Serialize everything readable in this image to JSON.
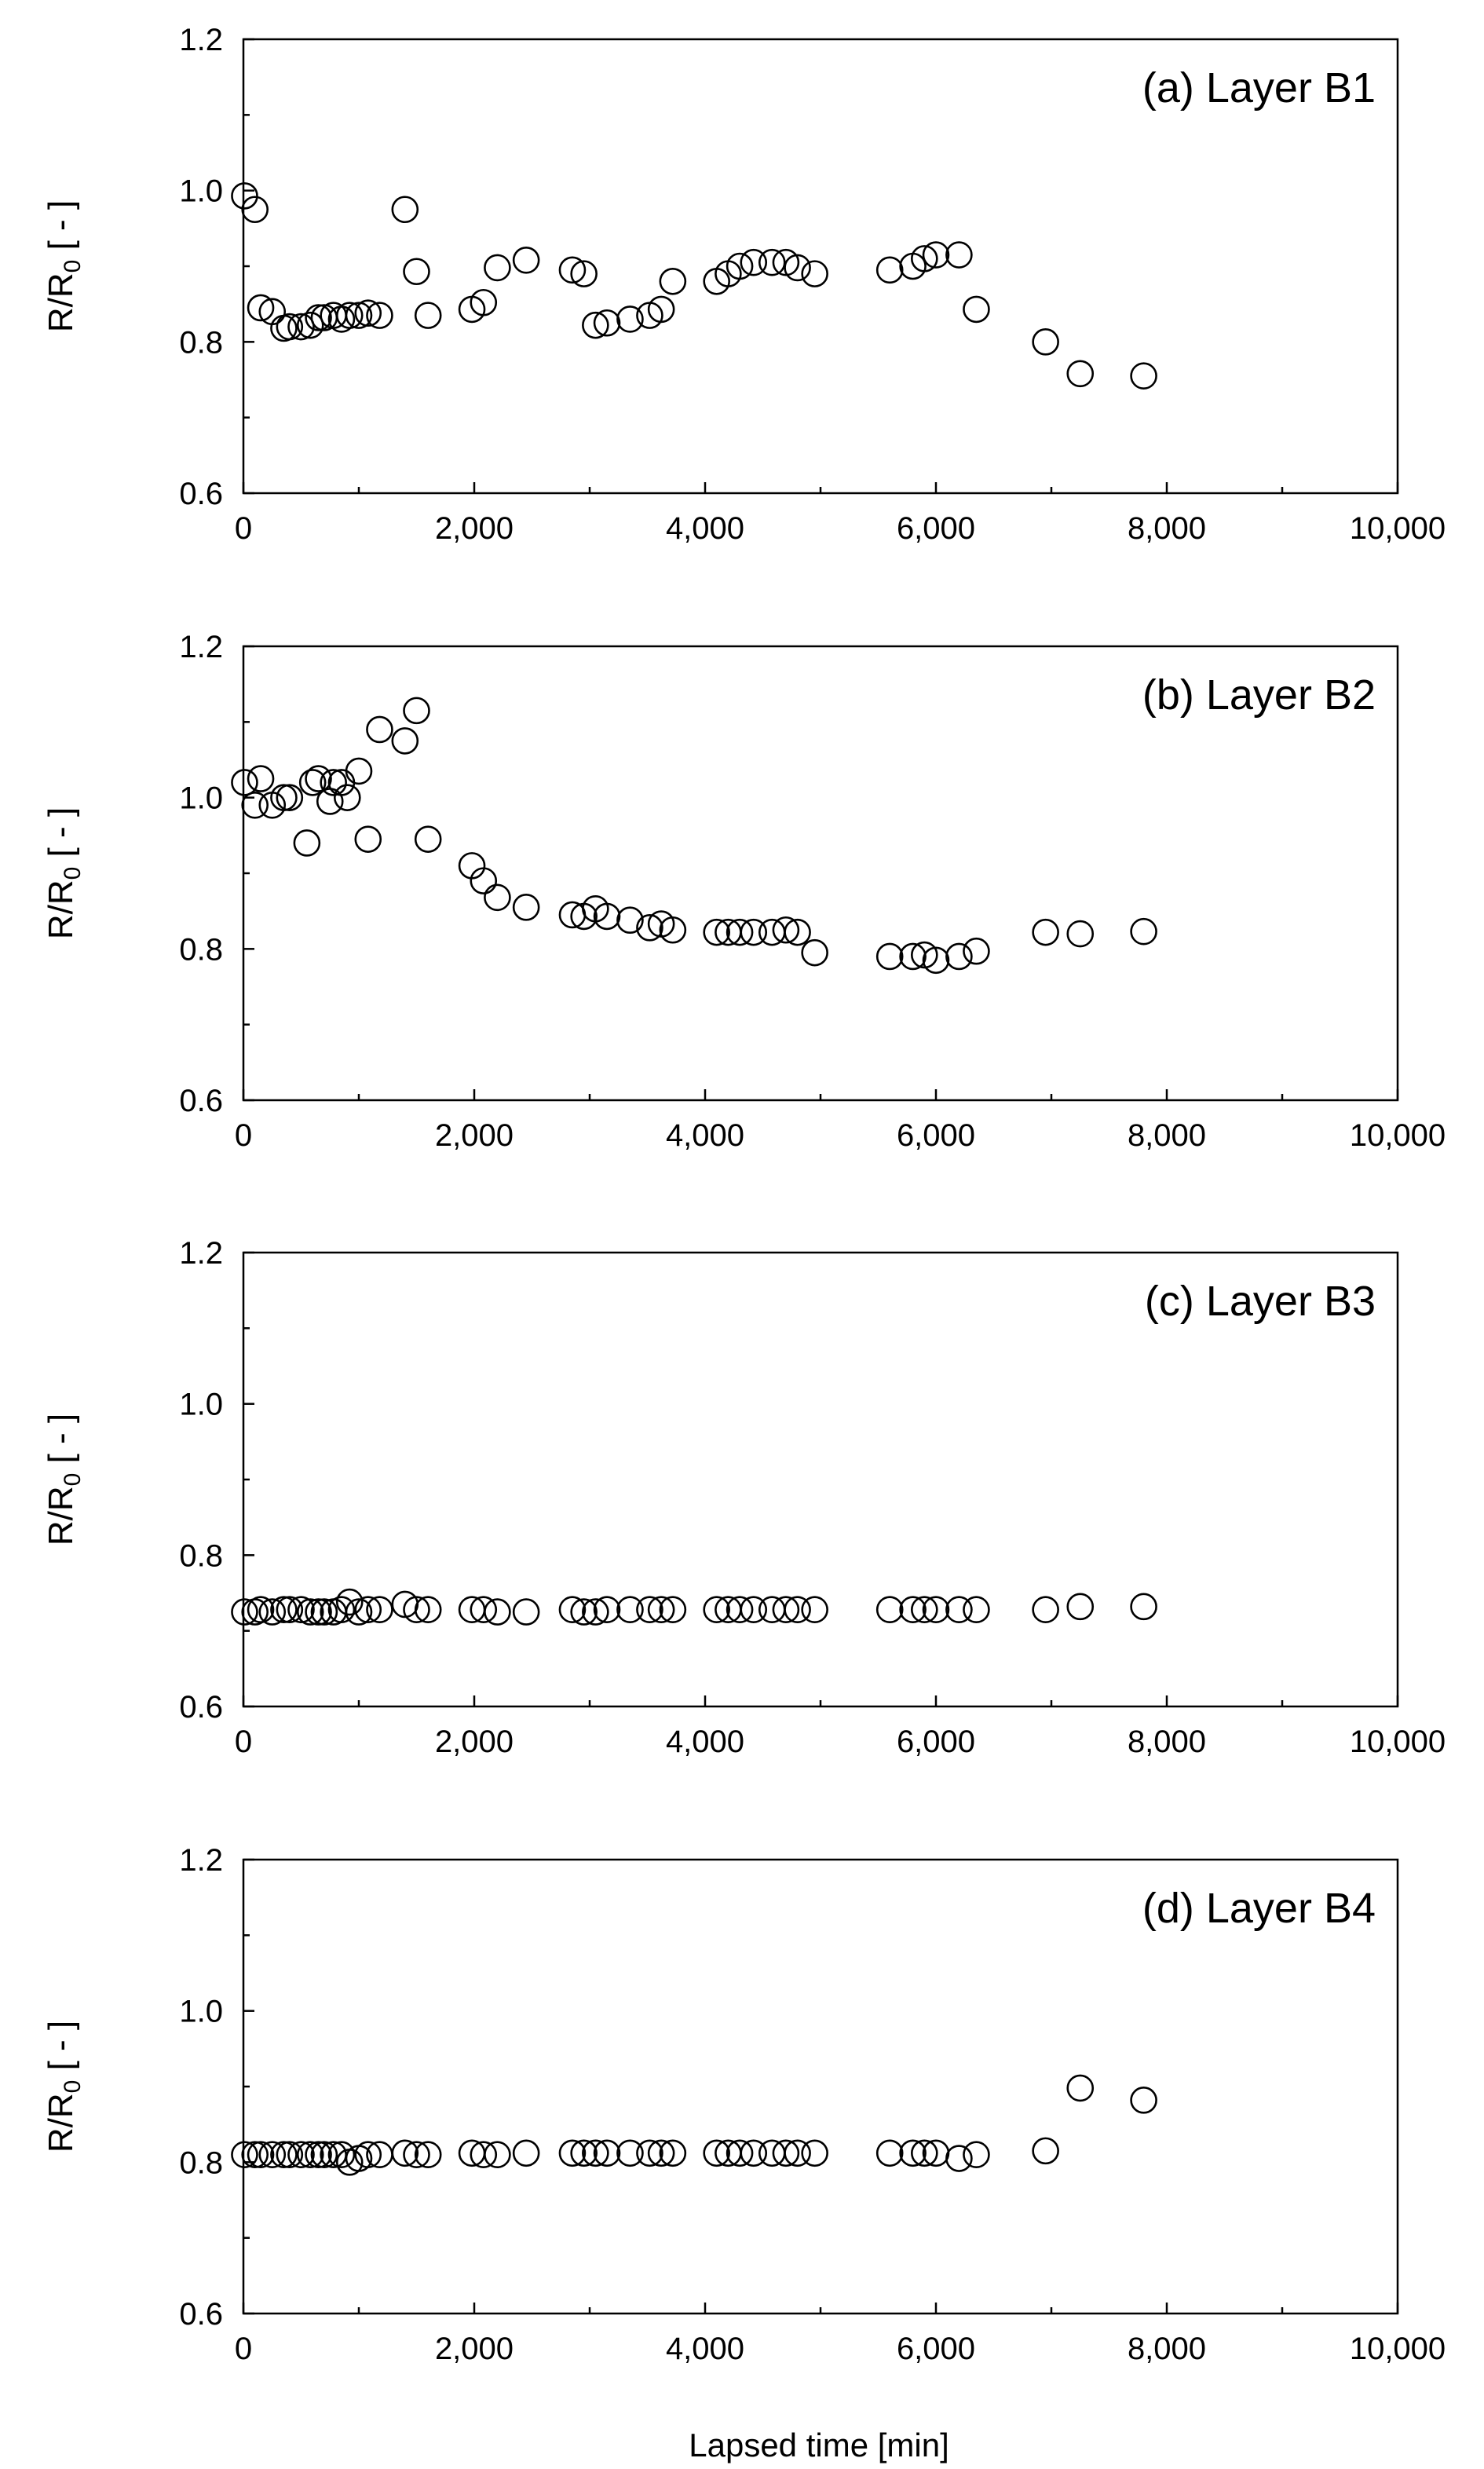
{
  "chart_data": [
    {
      "type": "scatter",
      "title": "(a) Layer B1",
      "ylabel_main": "R/R",
      "ylabel_sub": "0",
      "ylabel_tail": " [ - ]",
      "xlabel": "",
      "xlim": [
        0,
        10000
      ],
      "ylim": [
        0.6,
        1.2
      ],
      "x_ticks": [
        "0",
        "2,000",
        "4,000",
        "6,000",
        "8,000",
        "10,000"
      ],
      "y_ticks": [
        "0.6",
        "0.8",
        "1.0",
        "1.2"
      ],
      "grid": false,
      "x": [
        10,
        100,
        150,
        250,
        350,
        400,
        500,
        580,
        650,
        700,
        780,
        850,
        920,
        1000,
        1080,
        1180,
        1400,
        1500,
        1600,
        1980,
        2080,
        2200,
        2450,
        2850,
        2950,
        3050,
        3150,
        3350,
        3520,
        3620,
        3720,
        4100,
        4200,
        4300,
        4420,
        4580,
        4700,
        4800,
        4950,
        5600,
        5800,
        5900,
        6000,
        6200,
        6350,
        6950,
        7250,
        7800
      ],
      "y": [
        0.993,
        0.975,
        0.845,
        0.84,
        0.818,
        0.82,
        0.82,
        0.822,
        0.832,
        0.832,
        0.835,
        0.83,
        0.835,
        0.835,
        0.838,
        0.835,
        0.975,
        0.893,
        0.835,
        0.843,
        0.852,
        0.898,
        0.908,
        0.895,
        0.89,
        0.822,
        0.825,
        0.83,
        0.835,
        0.843,
        0.88,
        0.88,
        0.89,
        0.9,
        0.905,
        0.905,
        0.905,
        0.898,
        0.89,
        0.895,
        0.9,
        0.91,
        0.915,
        0.915,
        0.843,
        0.8,
        0.758,
        0.755
      ]
    },
    {
      "type": "scatter",
      "title": "(b) Layer B2",
      "ylabel_main": "R/R",
      "ylabel_sub": "0",
      "ylabel_tail": " [ - ]",
      "xlabel": "",
      "xlim": [
        0,
        10000
      ],
      "ylim": [
        0.6,
        1.2
      ],
      "x_ticks": [
        "0",
        "2,000",
        "4,000",
        "6,000",
        "8,000",
        "10,000"
      ],
      "y_ticks": [
        "0.6",
        "0.8",
        "1.0",
        "1.2"
      ],
      "grid": false,
      "x": [
        10,
        100,
        150,
        250,
        350,
        400,
        550,
        600,
        650,
        750,
        780,
        850,
        900,
        1000,
        1080,
        1180,
        1400,
        1500,
        1600,
        1980,
        2080,
        2200,
        2450,
        2850,
        2950,
        3050,
        3150,
        3350,
        3520,
        3620,
        3720,
        4100,
        4200,
        4300,
        4420,
        4580,
        4700,
        4800,
        4950,
        5600,
        5800,
        5900,
        6000,
        6200,
        6350,
        6950,
        7250,
        7800
      ],
      "y": [
        1.02,
        0.99,
        1.025,
        0.99,
        1.0,
        1.0,
        0.94,
        1.02,
        1.025,
        0.995,
        1.02,
        1.02,
        1.0,
        1.035,
        0.945,
        1.09,
        1.075,
        1.115,
        0.945,
        0.91,
        0.89,
        0.868,
        0.855,
        0.845,
        0.843,
        0.853,
        0.843,
        0.838,
        0.828,
        0.833,
        0.825,
        0.822,
        0.822,
        0.822,
        0.822,
        0.822,
        0.825,
        0.822,
        0.795,
        0.79,
        0.79,
        0.792,
        0.785,
        0.79,
        0.797,
        0.822,
        0.82,
        0.823
      ]
    },
    {
      "type": "scatter",
      "title": "(c) Layer B3",
      "ylabel_main": "R/R",
      "ylabel_sub": "0",
      "ylabel_tail": " [ - ]",
      "xlabel": "",
      "xlim": [
        0,
        10000
      ],
      "ylim": [
        0.6,
        1.2
      ],
      "x_ticks": [
        "0",
        "2,000",
        "4,000",
        "6,000",
        "8,000",
        "10,000"
      ],
      "y_ticks": [
        "0.6",
        "0.8",
        "1.0",
        "1.2"
      ],
      "grid": false,
      "x": [
        10,
        100,
        150,
        250,
        350,
        400,
        500,
        580,
        650,
        700,
        780,
        850,
        920,
        1000,
        1080,
        1180,
        1400,
        1500,
        1600,
        1980,
        2080,
        2200,
        2450,
        2850,
        2950,
        3050,
        3150,
        3350,
        3520,
        3620,
        3720,
        4100,
        4200,
        4300,
        4420,
        4580,
        4700,
        4800,
        4950,
        5600,
        5800,
        5900,
        6000,
        6200,
        6350,
        6950,
        7250,
        7800
      ],
      "y": [
        0.725,
        0.725,
        0.728,
        0.725,
        0.728,
        0.728,
        0.728,
        0.725,
        0.725,
        0.725,
        0.725,
        0.728,
        0.738,
        0.725,
        0.728,
        0.728,
        0.735,
        0.728,
        0.728,
        0.728,
        0.728,
        0.725,
        0.725,
        0.728,
        0.725,
        0.725,
        0.728,
        0.728,
        0.728,
        0.728,
        0.728,
        0.728,
        0.728,
        0.728,
        0.728,
        0.728,
        0.728,
        0.728,
        0.728,
        0.728,
        0.728,
        0.728,
        0.728,
        0.728,
        0.728,
        0.728,
        0.732,
        0.732
      ]
    },
    {
      "type": "scatter",
      "title": "(d) Layer B4",
      "ylabel_main": "R/R",
      "ylabel_sub": "0",
      "ylabel_tail": " [ - ]",
      "xlabel": "Lapsed time [min]",
      "xlim": [
        0,
        10000
      ],
      "ylim": [
        0.6,
        1.2
      ],
      "x_ticks": [
        "0",
        "2,000",
        "4,000",
        "6,000",
        "8,000",
        "10,000"
      ],
      "y_ticks": [
        "0.6",
        "0.8",
        "1.0",
        "1.2"
      ],
      "grid": false,
      "x": [
        10,
        100,
        150,
        250,
        350,
        400,
        500,
        580,
        650,
        700,
        780,
        850,
        920,
        1000,
        1080,
        1180,
        1400,
        1500,
        1600,
        1980,
        2080,
        2200,
        2450,
        2850,
        2950,
        3050,
        3150,
        3350,
        3520,
        3620,
        3720,
        4100,
        4200,
        4300,
        4420,
        4580,
        4700,
        4800,
        4950,
        5600,
        5800,
        5900,
        6000,
        6200,
        6350,
        6950,
        7250,
        7800
      ],
      "y": [
        0.81,
        0.81,
        0.81,
        0.81,
        0.81,
        0.81,
        0.81,
        0.81,
        0.81,
        0.81,
        0.81,
        0.81,
        0.8,
        0.805,
        0.81,
        0.81,
        0.812,
        0.81,
        0.81,
        0.812,
        0.81,
        0.81,
        0.812,
        0.812,
        0.812,
        0.812,
        0.812,
        0.812,
        0.812,
        0.812,
        0.812,
        0.812,
        0.812,
        0.812,
        0.812,
        0.812,
        0.812,
        0.812,
        0.812,
        0.812,
        0.812,
        0.812,
        0.812,
        0.805,
        0.81,
        0.815,
        0.898,
        0.882
      ]
    }
  ]
}
